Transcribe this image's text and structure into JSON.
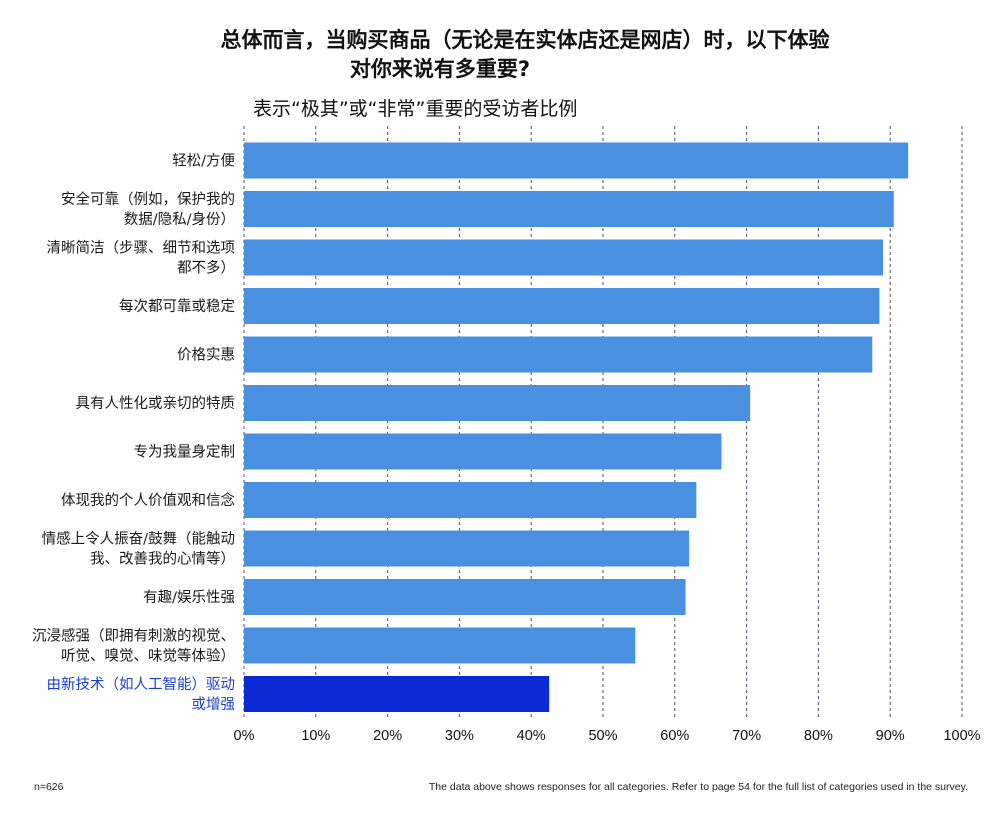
{
  "title": {
    "line1": "总体而言，当购买商品（无论是在实体店还是网店）时，以下体验",
    "line2": "对你来说有多重要?"
  },
  "subtitle": "表示“极其”或“非常”重要的受访者比例",
  "footer": {
    "sample": "n=626",
    "note": "The data above shows responses for all categories. Refer to page 54 for the full list of categories used in the survey."
  },
  "colors": {
    "bar": "#4a90e0",
    "highlight_bar": "#0a2ad6",
    "highlight_label": "#1a3fd0",
    "grid": "#4a4a6a"
  },
  "chart_data": {
    "type": "bar",
    "orientation": "horizontal",
    "categories": [
      [
        "轻松/方便"
      ],
      [
        "安全可靠（例如，保护我的",
        "数据/隐私/身份）"
      ],
      [
        "清晰简洁（步骤、细节和选项",
        "都不多）"
      ],
      [
        "每次都可靠或稳定"
      ],
      [
        "价格实惠"
      ],
      [
        "具有人性化或亲切的特质"
      ],
      [
        "专为我量身定制"
      ],
      [
        "体现我的个人价值观和信念"
      ],
      [
        "情感上令人振奋/鼓舞（能触动",
        "我、改善我的心情等）"
      ],
      [
        "有趣/娱乐性强"
      ],
      [
        "沉浸感强（即拥有刺激的视觉、",
        "听觉、嗅觉、味觉等体验）"
      ],
      [
        "由新技术（如人工智能）驱动",
        "或增强"
      ]
    ],
    "values": [
      92.5,
      90.5,
      89,
      88.5,
      87.5,
      70.5,
      66.5,
      63,
      62,
      61.5,
      54.5,
      42.5
    ],
    "highlight_index": 11,
    "xlim": [
      0,
      100
    ],
    "x_ticks": [
      "0%",
      "10%",
      "20%",
      "30%",
      "40%",
      "50%",
      "60%",
      "70%",
      "80%",
      "90%",
      "100%"
    ],
    "grid": "vertical dashed",
    "legend": "none"
  }
}
